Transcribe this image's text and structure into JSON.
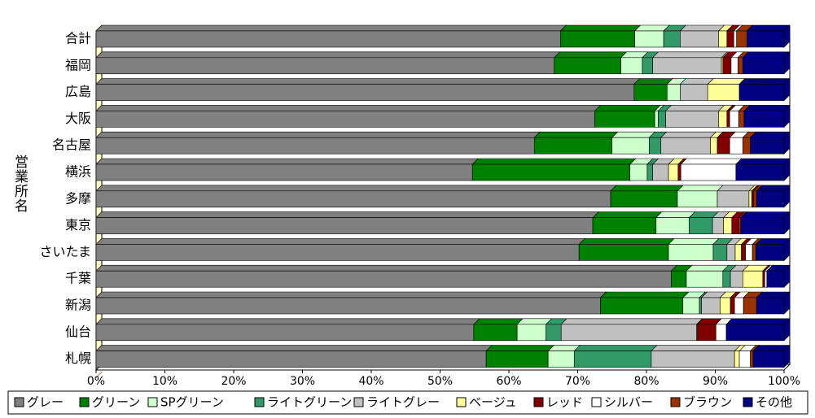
{
  "chart_data": {
    "type": "stacked_barh",
    "y_label": "営業所名",
    "categories": [
      "合計",
      "福岡",
      "広島",
      "大阪",
      "名古屋",
      "横浜",
      "多摩",
      "東京",
      "さいたま",
      "千葉",
      "新潟",
      "仙台",
      "札幌"
    ],
    "series": [
      {
        "name": "グレー",
        "color": "#808080",
        "values": [
          67.5,
          66.6,
          78.2,
          72.5,
          63.7,
          54.7,
          74.8,
          72.2,
          70.2,
          83.6,
          73.3,
          54.9,
          56.7
        ]
      },
      {
        "name": "グリーン",
        "color": "#008000",
        "values": [
          10.8,
          9.7,
          4.8,
          8.7,
          11.3,
          22.9,
          9.7,
          9.2,
          13.0,
          2.2,
          12.0,
          6.3,
          9.0
        ]
      },
      {
        "name": "SPグリーン",
        "color": "#ccffcc",
        "values": [
          4.2,
          3.1,
          1.9,
          0.5,
          5.4,
          2.5,
          5.8,
          4.8,
          6.5,
          5.3,
          2.4,
          4.2,
          3.8
        ]
      },
      {
        "name": "ライトグリーン",
        "color": "#339966",
        "values": [
          2.4,
          1.5,
          0,
          1.1,
          1.7,
          0.8,
          0,
          3.4,
          2.0,
          1.1,
          0.3,
          2.2,
          11.2
        ]
      },
      {
        "name": "ライトグレー",
        "color": "#c0c0c0",
        "values": [
          5.6,
          10.0,
          4.0,
          7.7,
          7.2,
          2.3,
          4.6,
          1.6,
          1.2,
          1.8,
          2.7,
          19.7,
          12.1
        ]
      },
      {
        "name": "ベージュ",
        "color": "#ffff99",
        "values": [
          1.2,
          0.2,
          4.6,
          1.2,
          1.0,
          1.4,
          0.4,
          1.2,
          0.9,
          2.9,
          1.5,
          0.1,
          0.7
        ]
      },
      {
        "name": "レッド",
        "color": "#800000",
        "values": [
          1.0,
          1.2,
          0,
          0.4,
          1.8,
          0.4,
          0.3,
          1.0,
          0.6,
          0.3,
          0.6,
          2.7,
          0
        ]
      },
      {
        "name": "シルバー",
        "color": "#ffffff",
        "values": [
          0.4,
          1.0,
          0,
          1.3,
          1.9,
          8.0,
          0,
          0,
          1.0,
          0.3,
          1.3,
          1.5,
          1.6
        ]
      },
      {
        "name": "ブラウン",
        "color": "#993300",
        "values": [
          1.5,
          0.7,
          0,
          0.8,
          1.1,
          0,
          0.4,
          0.3,
          0.5,
          0,
          1.9,
          0,
          0.4
        ]
      },
      {
        "name": "その他",
        "color": "#000080",
        "values": [
          5.4,
          6.0,
          6.5,
          5.8,
          4.9,
          7.0,
          4.0,
          6.3,
          4.1,
          2.5,
          4.0,
          8.4,
          4.5
        ]
      }
    ],
    "xlim": [
      0,
      100
    ],
    "xticks": [
      {
        "value": 0,
        "label": "0%"
      },
      {
        "value": 10,
        "label": "10%"
      },
      {
        "value": 20,
        "label": "20%"
      },
      {
        "value": 30,
        "label": "30%"
      },
      {
        "value": 40,
        "label": "40%"
      },
      {
        "value": 50,
        "label": "50%"
      },
      {
        "value": 60,
        "label": "60%"
      },
      {
        "value": 70,
        "label": "70%"
      },
      {
        "value": 80,
        "label": "80%"
      },
      {
        "value": 90,
        "label": "90%"
      },
      {
        "value": 100,
        "label": "100%"
      }
    ],
    "grid": false,
    "legend": "bottom"
  }
}
